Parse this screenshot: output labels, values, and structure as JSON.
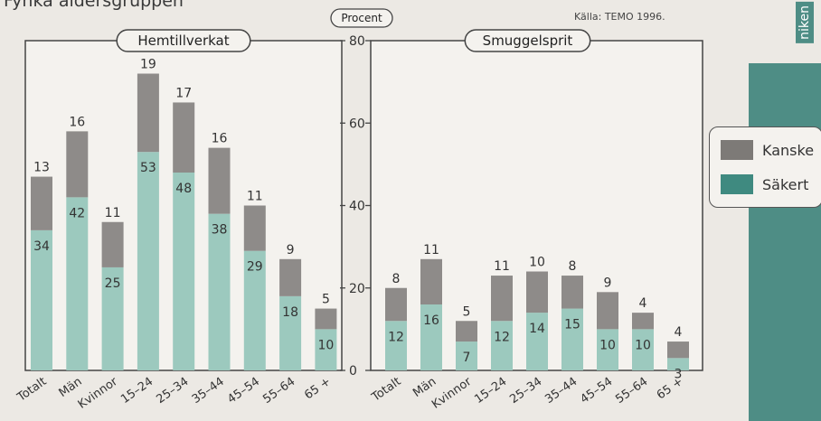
{
  "header": {
    "title": "Fynka åldersgruppen"
  },
  "source": "Källa: TEMO 1996.",
  "sidebar": {
    "label": "niken"
  },
  "legend": {
    "items": [
      {
        "label": "Kanske",
        "color": "#7d7a77"
      },
      {
        "label": "Säkert",
        "color": "#3f8a80"
      }
    ]
  },
  "colors": {
    "kanske": "#8e8b89",
    "sakert": "#9cc9be",
    "panel": "#f4f2ee"
  },
  "chart_data": [
    {
      "type": "bar",
      "stacked": true,
      "title": "Hemtillverkat",
      "categories": [
        "Totalt",
        "Män",
        "Kvinnor",
        "15–24",
        "25–34",
        "35–44",
        "45–54",
        "55–64",
        "65 +"
      ],
      "series": [
        {
          "name": "Säkert",
          "values": [
            34,
            42,
            25,
            53,
            48,
            38,
            29,
            18,
            10
          ]
        },
        {
          "name": "Kanske",
          "values": [
            13,
            16,
            11,
            19,
            17,
            16,
            11,
            9,
            5
          ]
        }
      ],
      "ylabel": "Procent",
      "ylim": [
        0,
        80
      ],
      "yticks": [
        0,
        20,
        40,
        60,
        80
      ]
    },
    {
      "type": "bar",
      "stacked": true,
      "title": "Smuggelsprit",
      "categories": [
        "Totalt",
        "Män",
        "Kvinnor",
        "15–24",
        "25–34",
        "35–44",
        "45–54",
        "55–64",
        "65 +"
      ],
      "series": [
        {
          "name": "Säkert",
          "values": [
            12,
            16,
            7,
            12,
            14,
            15,
            10,
            10,
            3
          ]
        },
        {
          "name": "Kanske",
          "values": [
            8,
            11,
            5,
            11,
            10,
            8,
            9,
            4,
            4
          ]
        }
      ],
      "ylabel": "Procent",
      "ylim": [
        0,
        80
      ],
      "yticks": [
        0,
        20,
        40,
        60,
        80
      ]
    }
  ]
}
